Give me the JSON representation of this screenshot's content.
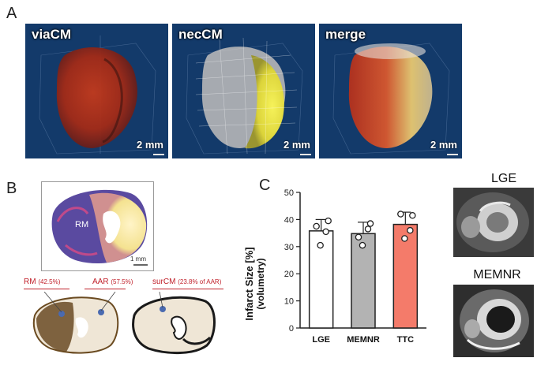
{
  "panelA": {
    "letter": "A",
    "volumes": [
      {
        "title": "viaCM",
        "scale": "2 mm"
      },
      {
        "title": "necCM",
        "scale": "2 mm"
      },
      {
        "title": "merge",
        "scale": "2 mm"
      }
    ]
  },
  "panelB": {
    "letter": "B",
    "rm_label": "RM",
    "scale": "1 mm",
    "labels": {
      "rm": "RM",
      "rm_pct": "(42.5%)",
      "aar": "AAR",
      "aar_pct": "(57.5%)",
      "surcm": "surCM",
      "surcm_pct": "(23.8% of AAR)"
    }
  },
  "panelC": {
    "letter": "C",
    "mri": [
      {
        "title": "LGE"
      },
      {
        "title": "MEMNR"
      }
    ]
  },
  "colors": {
    "volume_bg": "#133a6a",
    "bar_lge": "#ffffff",
    "bar_memnr": "#b3b3b3",
    "bar_ttc": "#f47b6a",
    "label_red": "#c0202a"
  },
  "chart_data": {
    "type": "bar",
    "categories": [
      "LGE",
      "MEMNR",
      "TTC"
    ],
    "values": [
      35.8,
      34.8,
      38.2
    ],
    "errors": [
      4.2,
      4.2,
      4.5
    ],
    "points": [
      [
        37.5,
        35.5,
        30.5,
        39.5
      ],
      [
        33.5,
        36.5,
        30.5,
        38.5
      ],
      [
        42,
        36,
        33,
        41.5
      ]
    ],
    "bar_colors": [
      "#ffffff",
      "#b3b3b3",
      "#f47b6a"
    ],
    "ylabel": "Infarct Size [%]",
    "ylabel2": "(volumetry)",
    "ylim": [
      0,
      50
    ],
    "yticks": [
      0,
      10,
      20,
      30,
      40,
      50
    ]
  }
}
